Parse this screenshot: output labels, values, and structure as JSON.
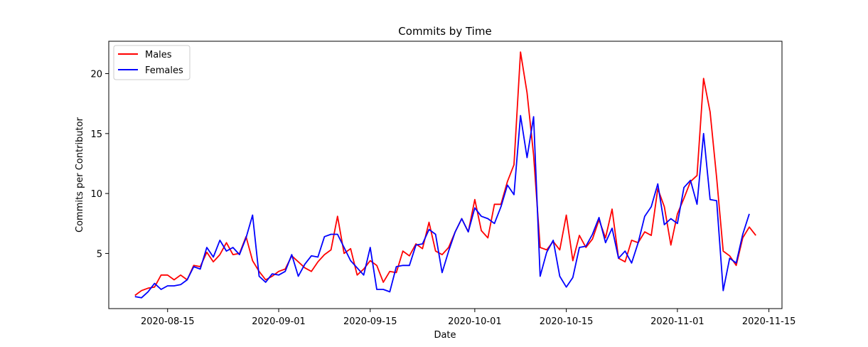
{
  "chart_data": {
    "type": "line",
    "title": "Commits by Time",
    "xlabel": "Date",
    "ylabel": "Commits per Contributor",
    "x_start": "2020-08-10",
    "x_ticks": [
      "2020-08-15",
      "2020-09-01",
      "2020-09-15",
      "2020-10-01",
      "2020-10-15",
      "2020-11-01",
      "2020-11-15"
    ],
    "y_ticks": [
      5,
      10,
      15,
      20
    ],
    "xlim": [
      "2020-08-06",
      "2020-11-17"
    ],
    "ylim": [
      0.4,
      22.7
    ],
    "legend": "top-left",
    "grid": false,
    "series": [
      {
        "name": "Males",
        "color": "#ff0000",
        "values": [
          1.5,
          1.9,
          2.1,
          2.2,
          3.2,
          3.2,
          2.8,
          3.2,
          2.8,
          4.0,
          3.9,
          5.1,
          4.3,
          4.9,
          5.9,
          4.9,
          5.0,
          6.4,
          4.4,
          3.5,
          2.8,
          3.1,
          3.5,
          3.7,
          4.8,
          4.3,
          3.8,
          3.5,
          4.3,
          4.9,
          5.3,
          8.1,
          5.0,
          5.4,
          3.2,
          3.7,
          4.4,
          4.0,
          2.6,
          3.5,
          3.4,
          5.2,
          4.8,
          5.8,
          5.4,
          7.6,
          5.2,
          4.9,
          5.5,
          6.8,
          7.9,
          6.8,
          9.5,
          6.9,
          6.3,
          9.1,
          9.1,
          11.0,
          12.4,
          21.8,
          18.4,
          13.2,
          5.5,
          5.3,
          6.0,
          5.3,
          8.2,
          4.4,
          6.5,
          5.5,
          6.2,
          7.8,
          6.3,
          8.7,
          4.6,
          4.3,
          6.1,
          5.9,
          6.8,
          6.5,
          10.4,
          8.9,
          5.7,
          8.3,
          9.6,
          11.0,
          11.5,
          19.6,
          16.8,
          11.3,
          5.2,
          4.8,
          4.0,
          6.3,
          7.2,
          6.5
        ],
        "values_note": ""
      },
      {
        "name": "Females",
        "color": "#0000ff",
        "values": [
          1.4,
          1.3,
          1.8,
          2.5,
          2.0,
          2.3,
          2.3,
          2.4,
          2.8,
          3.9,
          3.7,
          5.5,
          4.7,
          6.1,
          5.2,
          5.5,
          4.9,
          6.3,
          8.2,
          3.1,
          2.6,
          3.3,
          3.2,
          3.5,
          4.9,
          3.1,
          4.1,
          4.8,
          4.7,
          6.4,
          6.6,
          6.6,
          5.5,
          4.4,
          3.8,
          3.2,
          5.5,
          2.0,
          2.0,
          1.8,
          3.9,
          4.0,
          4.0,
          5.7,
          5.8,
          7.0,
          6.6,
          3.4,
          5.2,
          6.8,
          7.9,
          6.8,
          8.8,
          8.1,
          7.9,
          7.5,
          8.9,
          10.7,
          9.9,
          16.5,
          13.0,
          16.4,
          3.1,
          5.1,
          6.1,
          3.1,
          2.2,
          3.0,
          5.5,
          5.6,
          6.6,
          8.0,
          5.9,
          7.1,
          4.6,
          5.2,
          4.2,
          5.9,
          8.1,
          8.9,
          10.8,
          7.4,
          7.9,
          7.5,
          10.5,
          11.1,
          9.1,
          15.0,
          9.5,
          9.4,
          1.9,
          4.6,
          4.2,
          6.6,
          8.3
        ]
      }
    ]
  }
}
